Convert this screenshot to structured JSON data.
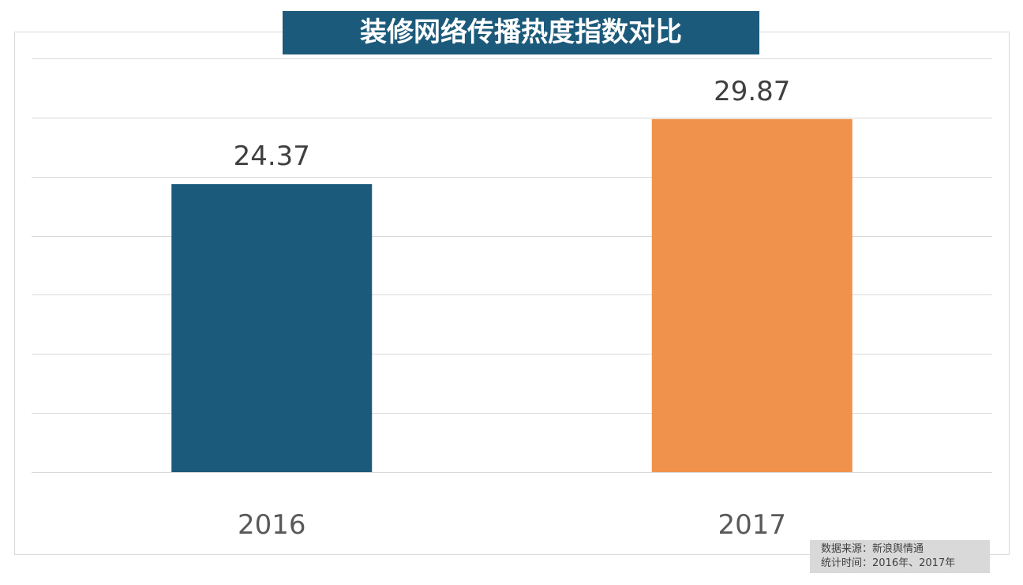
{
  "chart_data": {
    "type": "bar",
    "title": "装修网络传播热度指数对比",
    "categories": [
      "2016",
      "2017"
    ],
    "values": [
      24.37,
      29.87
    ],
    "data_labels": [
      "24.37",
      "29.87"
    ],
    "colors": [
      "#1c5a7b",
      "#f0924b"
    ],
    "xlabel": "",
    "ylabel": "",
    "ylim": [
      0,
      35
    ],
    "grid_step": 5,
    "grid": true,
    "y_tick_labels_shown": false
  },
  "source_note": {
    "line1": "数据来源：新浪舆情通",
    "line2": "统计时间：2016年、2017年"
  }
}
